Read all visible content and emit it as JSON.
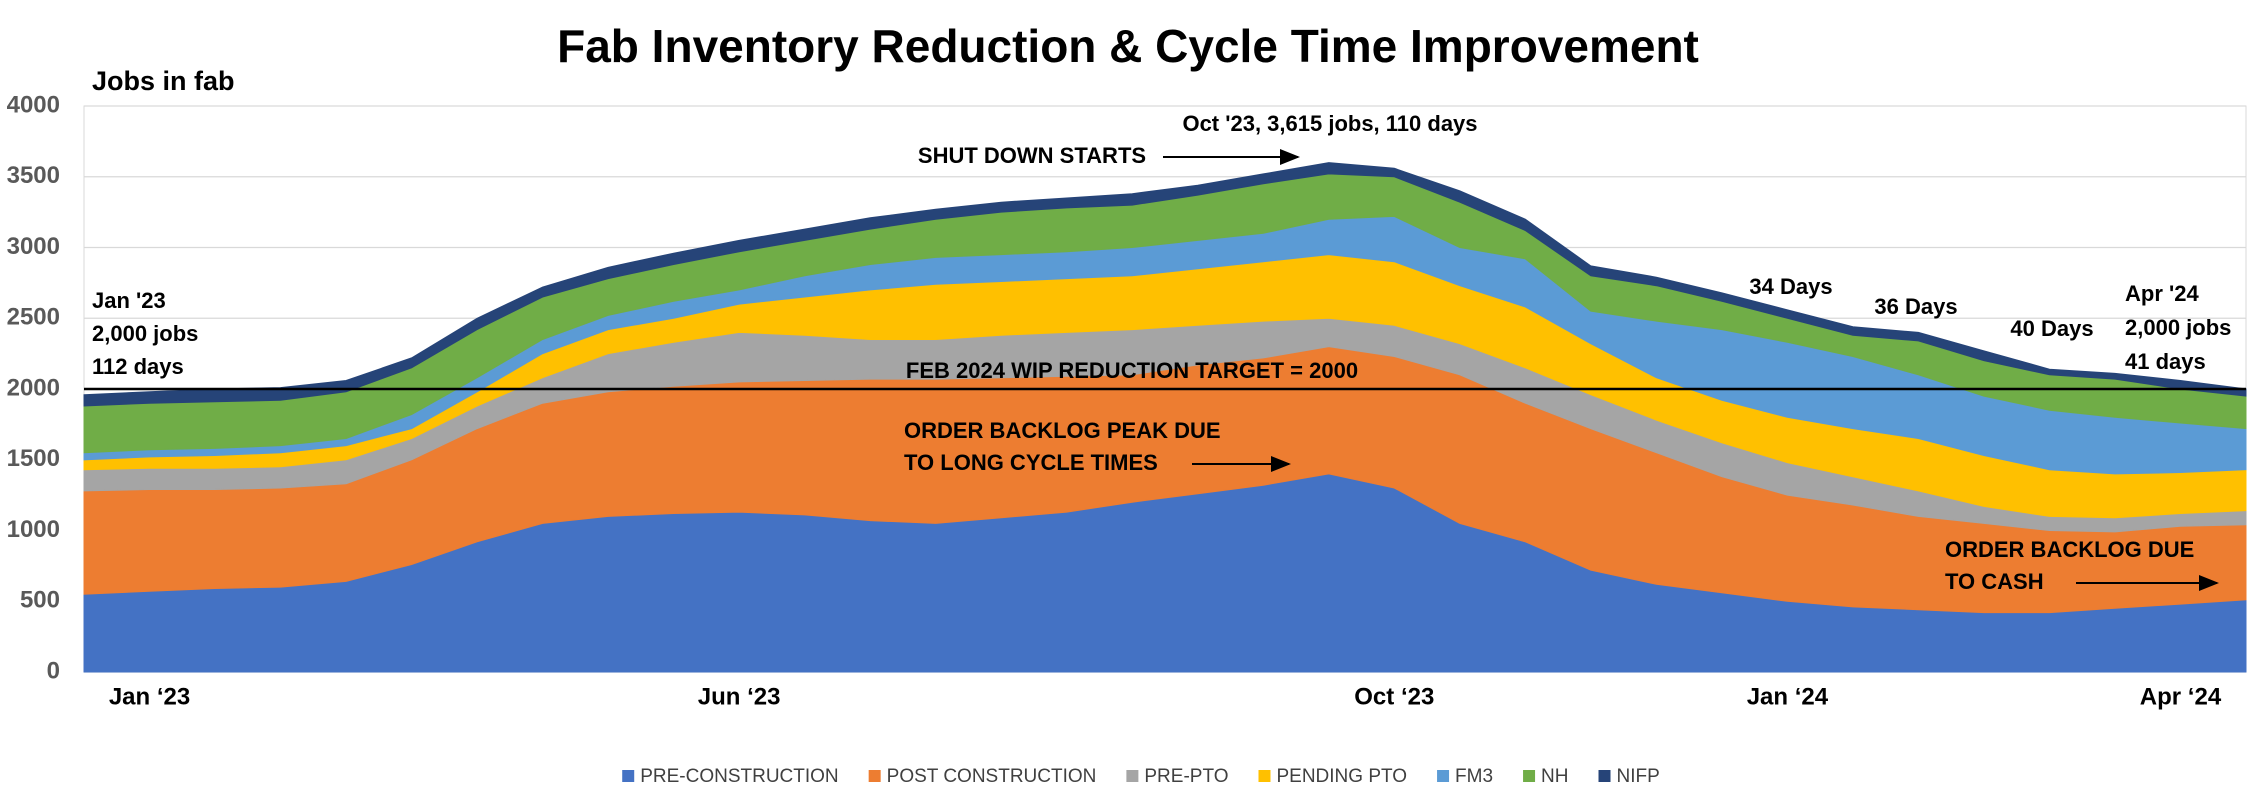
{
  "chart_data": {
    "type": "stacked-area",
    "title": "Fab Inventory Reduction & Cycle Time Improvement",
    "y_label": "Jobs in fab",
    "categories": [
      null,
      "Jan ‘23",
      null,
      null,
      null,
      null,
      null,
      null,
      null,
      null,
      "Jun ‘23",
      null,
      null,
      null,
      null,
      null,
      null,
      null,
      null,
      null,
      "Oct ‘23",
      null,
      null,
      null,
      null,
      null,
      "Jan ‘24",
      null,
      null,
      null,
      null,
      null,
      "Apr ‘24",
      null
    ],
    "ylim": [
      0,
      4000
    ],
    "yticks": [
      0,
      500,
      1000,
      1500,
      2000,
      2500,
      3000,
      3500,
      4000
    ],
    "grid": true,
    "series": [
      {
        "name": "PRE-CONSTRUCTION",
        "color": "#4472c4",
        "values": [
          550,
          570,
          590,
          600,
          640,
          760,
          920,
          1050,
          1100,
          1120,
          1130,
          1110,
          1070,
          1050,
          1090,
          1130,
          1200,
          1260,
          1320,
          1400,
          1300,
          1050,
          920,
          720,
          620,
          560,
          500,
          460,
          440,
          420,
          420,
          450,
          480,
          510
        ]
      },
      {
        "name": "POST CONSTRUCTION",
        "color": "#ed7d31",
        "values": [
          730,
          720,
          700,
          700,
          690,
          740,
          800,
          850,
          880,
          900,
          920,
          950,
          1000,
          1020,
          990,
          960,
          900,
          910,
          900,
          900,
          930,
          1050,
          980,
          1000,
          930,
          820,
          750,
          720,
          660,
          630,
          580,
          540,
          550,
          530
        ]
      },
      {
        "name": "PRE-PTO",
        "color": "#a5a5a5",
        "values": [
          150,
          150,
          150,
          150,
          170,
          150,
          160,
          180,
          270,
          310,
          350,
          320,
          280,
          280,
          300,
          310,
          320,
          280,
          260,
          200,
          220,
          220,
          250,
          240,
          230,
          240,
          230,
          200,
          180,
          120,
          100,
          100,
          90,
          100
        ]
      },
      {
        "name": "PENDING PTO",
        "color": "#ffc000",
        "values": [
          70,
          80,
          90,
          100,
          100,
          70,
          100,
          170,
          170,
          170,
          200,
          270,
          350,
          390,
          380,
          380,
          380,
          400,
          420,
          450,
          450,
          410,
          430,
          360,
          300,
          300,
          320,
          340,
          370,
          360,
          330,
          310,
          290,
          290
        ]
      },
      {
        "name": "FM3",
        "color": "#5b9bd5",
        "values": [
          50,
          50,
          50,
          50,
          50,
          100,
          100,
          100,
          100,
          120,
          100,
          150,
          180,
          190,
          190,
          190,
          200,
          200,
          200,
          250,
          320,
          270,
          340,
          230,
          400,
          500,
          530,
          510,
          450,
          420,
          420,
          400,
          350,
          290
        ]
      },
      {
        "name": "NH",
        "color": "#70ad47",
        "values": [
          330,
          330,
          330,
          320,
          330,
          330,
          340,
          300,
          260,
          260,
          270,
          250,
          250,
          270,
          300,
          310,
          300,
          320,
          350,
          320,
          280,
          320,
          200,
          250,
          250,
          200,
          170,
          150,
          240,
          250,
          250,
          270,
          240,
          230
        ]
      },
      {
        "name": "NIFP",
        "color": "#264478",
        "values": [
          80,
          80,
          90,
          90,
          80,
          70,
          80,
          70,
          80,
          80,
          80,
          80,
          80,
          70,
          70,
          70,
          80,
          70,
          70,
          80,
          60,
          80,
          80,
          70,
          60,
          60,
          60,
          60,
          60,
          70,
          40,
          40,
          60,
          50
        ]
      }
    ],
    "target": 2000,
    "annotations": [
      [
        "Oct '23, 3,615 jobs, 110 days"
      ],
      [
        "SHUT DOWN STARTS"
      ],
      [
        "Jan '23",
        "2,000 jobs",
        "112 days"
      ],
      [
        "34 Days"
      ],
      [
        "36 Days"
      ],
      [
        "40 Days"
      ],
      [
        "Apr '24",
        "2,000 jobs",
        "41 days"
      ],
      [
        "FEB 2024 WIP REDUCTION TARGET = 2000"
      ],
      [
        "ORDER BACKLOG PEAK DUE",
        "TO LONG CYCLE TIMES"
      ],
      [
        "ORDER BACKLOG DUE",
        "TO CASH"
      ]
    ]
  }
}
